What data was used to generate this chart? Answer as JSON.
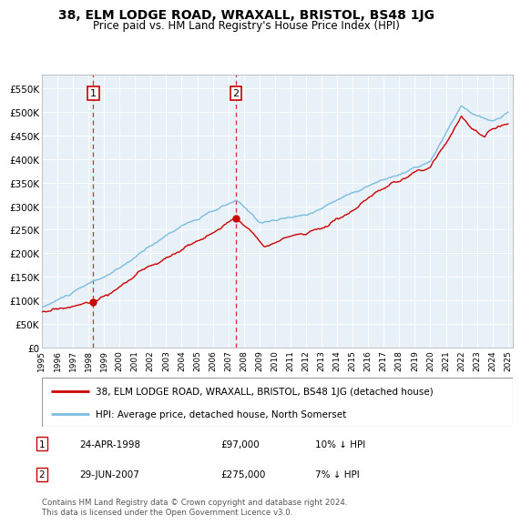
{
  "title": "38, ELM LODGE ROAD, WRAXALL, BRISTOL, BS48 1JG",
  "subtitle": "Price paid vs. HM Land Registry's House Price Index (HPI)",
  "ylabel_ticks": [
    "£0",
    "£50K",
    "£100K",
    "£150K",
    "£200K",
    "£250K",
    "£300K",
    "£350K",
    "£400K",
    "£450K",
    "£500K",
    "£550K"
  ],
  "ylim": [
    0,
    580000
  ],
  "xlim_start": 1995.0,
  "xlim_end": 2025.3,
  "sale1_x": 1998.31,
  "sale1_y": 97000,
  "sale1_label": "1",
  "sale1_date": "24-APR-1998",
  "sale1_price": "£97,000",
  "sale1_hpi": "10% ↓ HPI",
  "sale2_x": 2007.49,
  "sale2_y": 275000,
  "sale2_label": "2",
  "sale2_date": "29-JUN-2007",
  "sale2_price": "£275,000",
  "sale2_hpi": "7% ↓ HPI",
  "hpi_line_color": "#7abde0",
  "sale_line_color": "#cc0000",
  "dot_color": "#cc0000",
  "background_color": "#e8f0f8",
  "legend_label_sale": "38, ELM LODGE ROAD, WRAXALL, BRISTOL, BS48 1JG (detached house)",
  "legend_label_hpi": "HPI: Average price, detached house, North Somerset",
  "footer_text": "Contains HM Land Registry data © Crown copyright and database right 2024.\nThis data is licensed under the Open Government Licence v3.0.",
  "xticks": [
    1995,
    1996,
    1997,
    1998,
    1999,
    2000,
    2001,
    2002,
    2003,
    2004,
    2005,
    2006,
    2007,
    2008,
    2009,
    2010,
    2011,
    2012,
    2013,
    2014,
    2015,
    2016,
    2017,
    2018,
    2019,
    2020,
    2021,
    2022,
    2023,
    2024,
    2025
  ]
}
